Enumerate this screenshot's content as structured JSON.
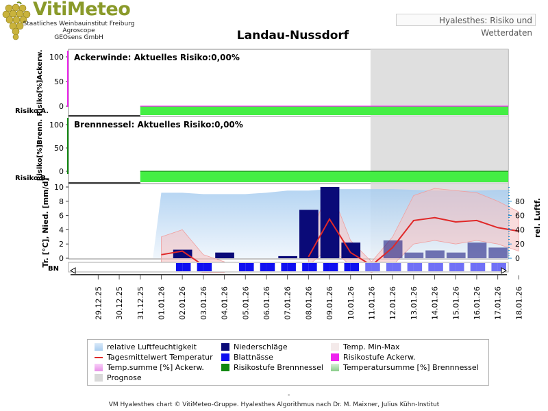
{
  "header": {
    "logo_title": "VitiMeteo",
    "org_lines": [
      "Staatliches Weinbauinstitut Freiburg",
      "Agroscope",
      "GEOsens GmbH"
    ],
    "subtitle": "Hyalesthes: Risiko und Wetterdaten",
    "title": "Landau-Nussdorf"
  },
  "colors": {
    "risk_green": "#44ee44",
    "prognose_bg": "#d9d9d9",
    "precip": "#0a0a78",
    "leaf_wet": "#1010f0",
    "temp_line": "#e02828",
    "humidity": "#a8cdf0",
    "tempminmax": "#f6c0c0",
    "ackerw_magenta": "#ee22ee",
    "brenn_green": "#118811"
  },
  "chart_data": {
    "type": "bar",
    "dates": [
      "29.12.25",
      "30.12.25",
      "31.12.25",
      "01.01.26",
      "02.01.26",
      "03.01.26",
      "04.01.26",
      "05.01.26",
      "06.01.26",
      "07.01.26",
      "08.01.26",
      "09.01.26",
      "10.01.26",
      "11.01.26",
      "12.01.26",
      "13.01.26",
      "14.01.26",
      "15.01.26",
      "16.01.26",
      "17.01.26",
      "18.01.26"
    ],
    "prognose_start": "11.01.26",
    "panels": {
      "ackerwinde": {
        "title": "Ackerwinde: Aktuelles Risiko:0,00%",
        "ylabel": "Risiko[%]Ackerw.",
        "risk_label": "Risiko A.",
        "yticks": [
          "100",
          "50",
          "0"
        ],
        "ylim": [
          0,
          100
        ],
        "risk_from": "31.12.25",
        "current_risk": 0
      },
      "brennnessel": {
        "title": "Brennnessel: Aktuelles Risiko:0,00%",
        "ylabel": "Risiko[%]Brenn.",
        "risk_label": "Risiko B.",
        "yticks": [
          "100",
          "50",
          "0"
        ],
        "ylim": [
          0,
          100
        ],
        "risk_from": "31.12.25",
        "current_risk": 0
      },
      "weather": {
        "ylabel_left": "Tr. [°C], Nied. [mm/d]",
        "ylabel_right": "rel. Luftf.",
        "yticks_left": [
          "10",
          "8",
          "6",
          "4",
          "2",
          "0"
        ],
        "yticks_right": [
          "80",
          "60",
          "40",
          "20",
          "0"
        ],
        "ylim_left": [
          0,
          10
        ],
        "ylim_right": [
          0,
          100
        ],
        "bn_label": "BN",
        "precipitation": [
          0,
          0,
          0,
          0,
          1.2,
          0,
          0.8,
          0,
          0,
          0.3,
          6.8,
          10,
          2.2,
          0,
          2.5,
          0.8,
          1.1,
          0.8,
          2.2,
          1.5,
          0
        ],
        "temperature": [
          null,
          null,
          null,
          0.5,
          1.0,
          -1.0,
          -1.5,
          null,
          null,
          null,
          0.2,
          5.5,
          0.8,
          -2.5,
          1.5,
          5.3,
          5.7,
          5.1,
          5.3,
          4.3,
          3.8
        ],
        "temp_max": [
          null,
          null,
          null,
          3.0,
          4.0,
          0.5,
          -0.5,
          null,
          null,
          null,
          2.5,
          10,
          2.5,
          -0.5,
          3.0,
          8.8,
          9.8,
          9.5,
          9.2,
          8.0,
          6.5
        ],
        "temp_min": [
          null,
          null,
          null,
          -1.0,
          -1.5,
          -2.5,
          -3.0,
          null,
          null,
          null,
          -1.0,
          1.5,
          -1.0,
          -4.0,
          -1.0,
          2.0,
          2.5,
          2.0,
          2.5,
          2.0,
          1.0
        ],
        "humidity": [
          null,
          null,
          null,
          92,
          92,
          90,
          90,
          90,
          92,
          95,
          95,
          97,
          97,
          97,
          97,
          96,
          95,
          95,
          95,
          96,
          96
        ],
        "leaf_wetness_days": [
          "02.01.26",
          "03.01.26",
          "05.01.26",
          "06.01.26",
          "07.01.26",
          "08.01.26",
          "09.01.26",
          "10.01.26",
          "11.01.26",
          "12.01.26",
          "13.01.26",
          "14.01.26",
          "15.01.26",
          "16.01.26",
          "17.01.26"
        ]
      }
    }
  },
  "legend": {
    "items": [
      {
        "label": "relative Luftfeuchtigkeit",
        "key": "humidity"
      },
      {
        "label": "Niederschläge",
        "key": "precip"
      },
      {
        "label": "Temp. Min-Max",
        "key": "tempminmax"
      },
      {
        "label": "Tagesmittelwert Temperatur",
        "key": "temp_line"
      },
      {
        "label": "Blattnässe",
        "key": "leaf_wet"
      },
      {
        "label": "Risikostufe Ackerw.",
        "key": "ackerw_magenta"
      },
      {
        "label": "Temp.summe [%] Ackerw.",
        "key": "ackerw_temp"
      },
      {
        "label": "Risikostufe Brennnessel",
        "key": "brenn_green"
      },
      {
        "label": "Temperatursumme [%] Brennnessel",
        "key": "brenn_temp"
      },
      {
        "label": "Prognose",
        "key": "prognose_bg"
      }
    ]
  },
  "footer": {
    "dash": "-",
    "text": "VM Hyalesthes chart © VitiMeteo-Gruppe. Hyalesthes Algorithmus nach Dr. M. Maixner, Julius Kühn-Institut"
  }
}
